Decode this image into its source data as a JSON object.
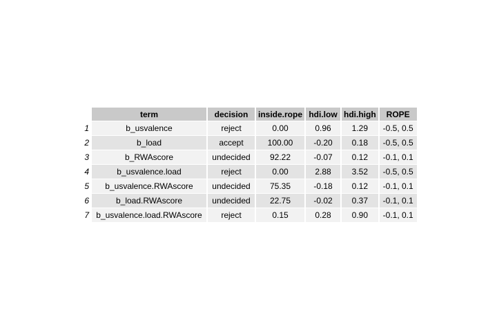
{
  "table": {
    "columns": [
      "term",
      "decision",
      "inside.rope",
      "hdi.low",
      "hdi.high",
      "ROPE"
    ],
    "rows": [
      {
        "num": "1",
        "term": "b_usvalence",
        "decision": "reject",
        "inside_rope": "0.00",
        "hdi_low": "0.96",
        "hdi_high": "1.29",
        "rope": "-0.5, 0.5"
      },
      {
        "num": "2",
        "term": "b_load",
        "decision": "accept",
        "inside_rope": "100.00",
        "hdi_low": "-0.20",
        "hdi_high": "0.18",
        "rope": "-0.5, 0.5"
      },
      {
        "num": "3",
        "term": "b_RWAscore",
        "decision": "undecided",
        "inside_rope": "92.22",
        "hdi_low": "-0.07",
        "hdi_high": "0.12",
        "rope": "-0.1, 0.1"
      },
      {
        "num": "4",
        "term": "b_usvalence.load",
        "decision": "reject",
        "inside_rope": "0.00",
        "hdi_low": "2.88",
        "hdi_high": "3.52",
        "rope": "-0.5, 0.5"
      },
      {
        "num": "5",
        "term": "b_usvalence.RWAscore",
        "decision": "undecided",
        "inside_rope": "75.35",
        "hdi_low": "-0.18",
        "hdi_high": "0.12",
        "rope": "-0.1, 0.1"
      },
      {
        "num": "6",
        "term": "b_load.RWAscore",
        "decision": "undecided",
        "inside_rope": "22.75",
        "hdi_low": "-0.02",
        "hdi_high": "0.37",
        "rope": "-0.1, 0.1"
      },
      {
        "num": "7",
        "term": "b_usvalence.load.RWAscore",
        "decision": "reject",
        "inside_rope": "0.15",
        "hdi_low": "0.28",
        "hdi_high": "0.90",
        "rope": "-0.1, 0.1"
      }
    ]
  }
}
